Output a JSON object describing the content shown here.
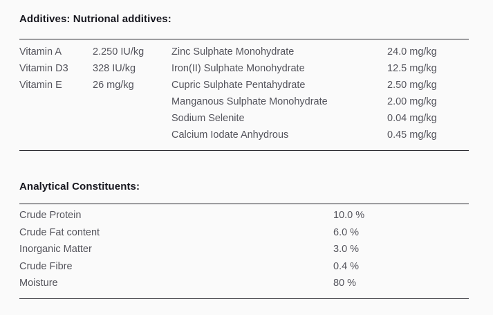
{
  "colors": {
    "background": "#fafafa",
    "heading_text": "#17171f",
    "body_text": "#54545c",
    "rule": "#26262c"
  },
  "additives": {
    "heading": "Additives: Nutrional additives:",
    "rows": [
      {
        "left_label": "Vitamin A",
        "left_value": "2.250 IU/kg",
        "right_label": "Zinc Sulphate Monohydrate",
        "right_value": "24.0 mg/kg"
      },
      {
        "left_label": "Vitamin D3",
        "left_value": "328 IU/kg",
        "right_label": "Iron(II) Sulphate Monohydrate",
        "right_value": "12.5 mg/kg"
      },
      {
        "left_label": "Vitamin E",
        "left_value": "26 mg/kg",
        "right_label": "Cupric Sulphate Pentahydrate",
        "right_value": "2.50 mg/kg"
      },
      {
        "left_label": "",
        "left_value": "",
        "right_label": "Manganous Sulphate Monohydrate",
        "right_value": "2.00 mg/kg"
      },
      {
        "left_label": "",
        "left_value": "",
        "right_label": "Sodium Selenite",
        "right_value": "0.04 mg/kg"
      },
      {
        "left_label": "",
        "left_value": "",
        "right_label": "Calcium Iodate Anhydrous",
        "right_value": "0.45 mg/kg"
      }
    ]
  },
  "analytical": {
    "heading": "Analytical Constituents:",
    "rows": [
      {
        "label": "Crude Protein",
        "value": "10.0 %"
      },
      {
        "label": "Crude Fat content",
        "value": "6.0 %"
      },
      {
        "label": "Inorganic Matter",
        "value": "3.0 %"
      },
      {
        "label": "Crude Fibre",
        "value": "0.4 %"
      },
      {
        "label": "Moisture",
        "value": "80 %"
      }
    ]
  }
}
